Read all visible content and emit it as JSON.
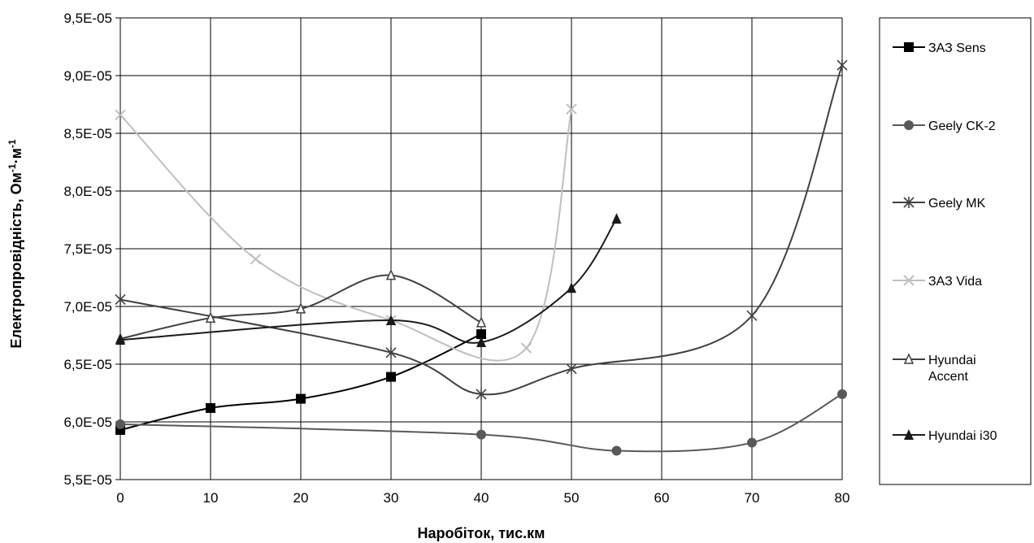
{
  "chart_data": {
    "type": "line",
    "title": "",
    "xlabel": "Наробіток, тис.км",
    "ylabel": "Електропровідність, Ом",
    "ylabel_sup1": "-1",
    "ylabel_mid": "·м",
    "ylabel_sup2": "-1",
    "xlim": [
      0,
      80
    ],
    "ylim": [
      5.5e-05,
      9.5e-05
    ],
    "x_ticks": [
      "0",
      "10",
      "20",
      "30",
      "40",
      "50",
      "60",
      "70",
      "80"
    ],
    "y_ticks": [
      "5,5E-05",
      "6,0E-05",
      "6,5E-05",
      "7,0E-05",
      "7,5E-05",
      "8,0E-05",
      "8,5E-05",
      "9,0E-05",
      "9,5E-05"
    ],
    "grid": true,
    "legend_position": "right",
    "series": [
      {
        "name": "ЗАЗ Sens",
        "marker": "square",
        "color": "#000000",
        "x": [
          0,
          10,
          20,
          30,
          40
        ],
        "y": [
          5.93e-05,
          6.12e-05,
          6.2e-05,
          6.39e-05,
          6.76e-05
        ]
      },
      {
        "name": "Geely CK-2",
        "marker": "circle",
        "color": "#595959",
        "x": [
          0,
          40,
          55,
          70,
          80
        ],
        "y": [
          5.98e-05,
          5.89e-05,
          5.75e-05,
          5.82e-05,
          6.24e-05
        ]
      },
      {
        "name": "Geely MK",
        "marker": "asterisk",
        "color": "#404040",
        "x": [
          0,
          30,
          40,
          50,
          70,
          80
        ],
        "y": [
          7.06e-05,
          6.6e-05,
          6.24e-05,
          6.46e-05,
          6.92e-05,
          9.09e-05
        ]
      },
      {
        "name": "ЗАЗ Vida",
        "marker": "x",
        "color": "#bfbfbf",
        "x": [
          0,
          15,
          30,
          45,
          50
        ],
        "y": [
          8.66e-05,
          7.41e-05,
          6.88e-05,
          6.64e-05,
          8.71e-05
        ]
      },
      {
        "name_lines": [
          "Hyundai",
          "Accent"
        ],
        "marker": "triangle-open",
        "color": "#404040",
        "x": [
          0,
          10,
          20,
          30,
          40
        ],
        "y": [
          6.72e-05,
          6.9e-05,
          6.98e-05,
          7.27e-05,
          6.86e-05
        ]
      },
      {
        "name": "Hyundai i30",
        "marker": "triangle",
        "color": "#1a1a1a",
        "x": [
          0,
          30,
          40,
          50,
          55
        ],
        "y": [
          6.71e-05,
          6.88e-05,
          6.69e-05,
          7.16e-05,
          7.76e-05
        ]
      }
    ]
  }
}
